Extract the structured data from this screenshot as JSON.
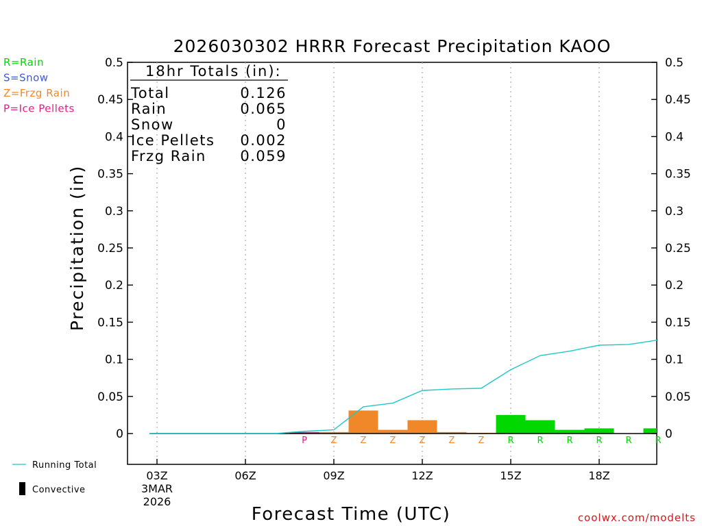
{
  "chart_data": {
    "type": "bar",
    "title": "2026030302 HRRR Forecast Precipitation KAOO",
    "xlabel": "Forecast Time (UTC)",
    "ylabel": "Precipitation (in)",
    "ylim": [
      -0.05,
      0.5
    ],
    "y_ticks": [
      0,
      0.05,
      0.1,
      0.15,
      0.2,
      0.25,
      0.3,
      0.35,
      0.4,
      0.45,
      0.5
    ],
    "y_tick_labels": [
      "0",
      "0.05",
      "0.1",
      "0.15",
      "0.2",
      "0.25",
      "0.3",
      "0.35",
      "0.4",
      "0.45",
      "0.5"
    ],
    "xlim_hours": [
      -1,
      17
    ],
    "x_ticks": [
      {
        "hour": 0,
        "label": "03Z",
        "sub1": "3MAR",
        "sub2": "2026"
      },
      {
        "hour": 3,
        "label": "06Z"
      },
      {
        "hour": 6,
        "label": "09Z"
      },
      {
        "hour": 9,
        "label": "12Z"
      },
      {
        "hour": 12,
        "label": "15Z"
      },
      {
        "hour": 15,
        "label": "18Z"
      }
    ],
    "grid": "vertical dotted at x ticks",
    "legend": {
      "type_keys": [
        {
          "text": "R=Rain",
          "color": "#00d800"
        },
        {
          "text": "S=Snow",
          "color": "#3f58e0"
        },
        {
          "text": "Z=Frzg Rain",
          "color": "#f0882a"
        },
        {
          "text": "P=Ice Pellets",
          "color": "#e0208a"
        }
      ],
      "running_total_label": "Running Total",
      "convective_label": "Convective"
    },
    "totals_box": {
      "header": "18hr Totals (in):",
      "rows": [
        {
          "label": "Total",
          "value": "0.126"
        },
        {
          "label": "Rain",
          "value": "0.065"
        },
        {
          "label": "Snow",
          "value": "0"
        },
        {
          "label": "Ice Pellets",
          "value": "0.002"
        },
        {
          "label": "Frzg Rain",
          "value": "0.059"
        }
      ]
    },
    "hourly": [
      {
        "hour": 1,
        "value": 0,
        "type": "",
        "color": "#f0882a"
      },
      {
        "hour": 2,
        "value": 0,
        "type": "",
        "color": "#f0882a"
      },
      {
        "hour": 3,
        "value": 0,
        "type": "",
        "color": "#f0882a"
      },
      {
        "hour": 4,
        "value": 0,
        "type": "",
        "color": "#f0882a"
      },
      {
        "hour": 5,
        "value": 0.002,
        "type": "P",
        "color": "#e0208a"
      },
      {
        "hour": 6,
        "value": 0.002,
        "type": "Z",
        "color": "#f0882a"
      },
      {
        "hour": 7,
        "value": 0.031,
        "type": "Z",
        "color": "#f0882a"
      },
      {
        "hour": 8,
        "value": 0.005,
        "type": "Z",
        "color": "#f0882a"
      },
      {
        "hour": 9,
        "value": 0.018,
        "type": "Z",
        "color": "#f0882a"
      },
      {
        "hour": 10,
        "value": 0.002,
        "type": "Z",
        "color": "#f0882a"
      },
      {
        "hour": 11,
        "value": 0.001,
        "type": "Z",
        "color": "#f0882a"
      },
      {
        "hour": 12,
        "value": 0.025,
        "type": "R",
        "color": "#00d800"
      },
      {
        "hour": 13,
        "value": 0.018,
        "type": "R",
        "color": "#00d800"
      },
      {
        "hour": 14,
        "value": 0.005,
        "type": "R",
        "color": "#00d800"
      },
      {
        "hour": 15,
        "value": 0.007,
        "type": "R",
        "color": "#00d800"
      },
      {
        "hour": 16,
        "value": 0.0,
        "type": "R",
        "color": "#00d800"
      },
      {
        "hour": 17,
        "value": 0.007,
        "type": "R",
        "color": "#00d800"
      }
    ],
    "running_total": {
      "color": "#1ec8c8",
      "points": [
        {
          "hour": -0.25,
          "value": 0
        },
        {
          "hour": 1,
          "value": 0
        },
        {
          "hour": 2,
          "value": 0
        },
        {
          "hour": 3,
          "value": 0
        },
        {
          "hour": 4,
          "value": 0
        },
        {
          "hour": 5,
          "value": 0.003
        },
        {
          "hour": 6,
          "value": 0.005
        },
        {
          "hour": 7,
          "value": 0.036
        },
        {
          "hour": 8,
          "value": 0.041
        },
        {
          "hour": 9,
          "value": 0.058
        },
        {
          "hour": 10,
          "value": 0.06
        },
        {
          "hour": 11,
          "value": 0.061
        },
        {
          "hour": 12,
          "value": 0.086
        },
        {
          "hour": 13,
          "value": 0.105
        },
        {
          "hour": 14,
          "value": 0.111
        },
        {
          "hour": 15,
          "value": 0.119
        },
        {
          "hour": 16,
          "value": 0.12
        },
        {
          "hour": 17,
          "value": 0.126
        }
      ]
    },
    "credit": "coolwx.com/modelts",
    "credit_color": "#d01818"
  }
}
